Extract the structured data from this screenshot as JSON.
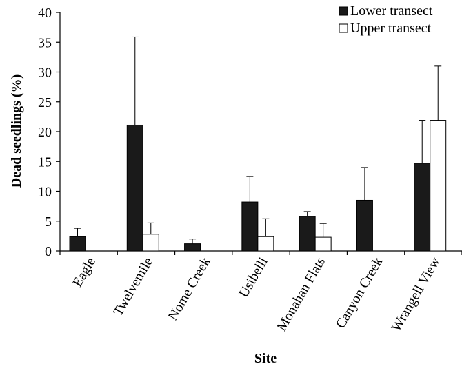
{
  "chart_data": {
    "type": "bar",
    "title": "",
    "xlabel": "Site",
    "ylabel": "Dead seedlings (%)",
    "ylim": [
      0,
      40
    ],
    "yticks": [
      0,
      5,
      10,
      15,
      20,
      25,
      30,
      35,
      40
    ],
    "categories": [
      "Eagle",
      "Twelvemile",
      "Nome Creek",
      "Usibelli",
      "Monahan Flats",
      "Canyon Creek",
      "Wrangell View"
    ],
    "series": [
      {
        "name": "Lower transect",
        "color": "#1a1a1a",
        "values": [
          2.4,
          21.1,
          1.2,
          8.2,
          5.8,
          8.5,
          14.7
        ],
        "error_upper": [
          3.8,
          35.9,
          2.0,
          12.5,
          6.6,
          14.0,
          21.9
        ]
      },
      {
        "name": "Upper transect",
        "color": "#ffffff",
        "values": [
          0,
          2.8,
          0,
          2.4,
          2.3,
          0,
          21.9
        ],
        "error_upper": [
          0,
          4.7,
          0,
          5.4,
          4.6,
          0,
          31.0
        ]
      }
    ],
    "grid": false,
    "legend_position": "top-right"
  }
}
